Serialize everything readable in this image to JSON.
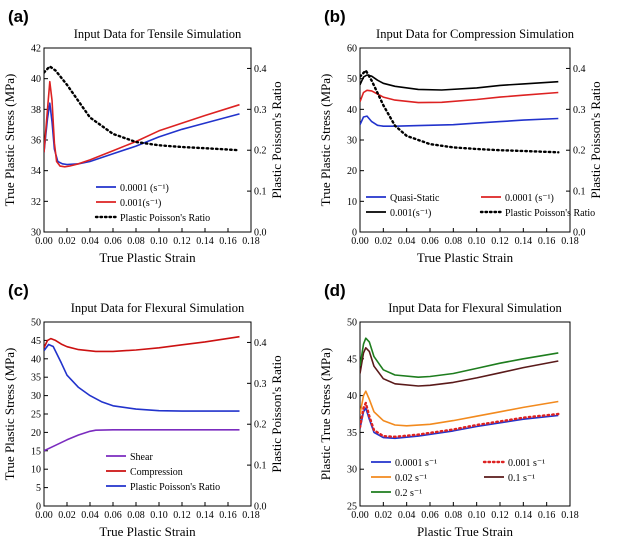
{
  "chart_data": [
    {
      "type": "line",
      "panel": "(a)",
      "title": "Input Data for Tensile Simulation",
      "xlabel": "True Plastic Strain",
      "ylabel": "True Plastic Stress (MPa)",
      "y2label": "Plastic Poisson's Ratio",
      "xlim": [
        0,
        0.18
      ],
      "ylim": [
        30,
        42
      ],
      "y2lim": [
        0,
        0.45
      ],
      "xticks": [
        "0.00",
        "0.02",
        "0.04",
        "0.06",
        "0.08",
        "0.10",
        "0.12",
        "0.14",
        "0.16",
        "0.18"
      ],
      "yticks": [
        "30",
        "32",
        "34",
        "36",
        "38",
        "40",
        "42"
      ],
      "y2ticks": [
        "0.0",
        "0.1",
        "0.2",
        "0.3",
        "0.4"
      ],
      "legend_position": "bottom-left",
      "series": [
        {
          "name": "0.0001 (s⁻¹)",
          "color": "#2233cc",
          "style": "solid",
          "axis": "left",
          "x": [
            0.0,
            0.003,
            0.005,
            0.007,
            0.009,
            0.012,
            0.016,
            0.02,
            0.03,
            0.04,
            0.06,
            0.08,
            0.1,
            0.12,
            0.14,
            0.17
          ],
          "y": [
            35.2,
            37.4,
            38.4,
            37.2,
            35.4,
            34.6,
            34.45,
            34.4,
            34.45,
            34.6,
            35.1,
            35.6,
            36.2,
            36.7,
            37.1,
            37.7
          ]
        },
        {
          "name": "0.001(s⁻¹)",
          "color": "#dd2222",
          "style": "solid",
          "axis": "left",
          "x": [
            0.0,
            0.003,
            0.005,
            0.007,
            0.009,
            0.011,
            0.014,
            0.018,
            0.022,
            0.03,
            0.04,
            0.06,
            0.08,
            0.1,
            0.12,
            0.14,
            0.17
          ],
          "y": [
            35.2,
            38.0,
            39.8,
            38.6,
            35.8,
            34.6,
            34.3,
            34.25,
            34.3,
            34.45,
            34.7,
            35.3,
            35.9,
            36.6,
            37.1,
            37.6,
            38.3
          ]
        },
        {
          "name": "Plastic Poisson's Ratio",
          "color": "#000000",
          "style": "dotted",
          "axis": "right",
          "x": [
            0.0,
            0.005,
            0.01,
            0.02,
            0.03,
            0.04,
            0.06,
            0.08,
            0.1,
            0.12,
            0.14,
            0.17
          ],
          "y": [
            0.39,
            0.405,
            0.395,
            0.36,
            0.32,
            0.28,
            0.24,
            0.22,
            0.212,
            0.208,
            0.205,
            0.2
          ]
        }
      ]
    },
    {
      "type": "line",
      "panel": "(b)",
      "title": "Input Data for Compression Simulation",
      "xlabel": "True Plastic  Strain",
      "ylabel": "True Plastic Stress (MPa)",
      "y2label": "Plastic Poisson's Ratio",
      "xlim": [
        0,
        0.18
      ],
      "ylim": [
        0,
        60
      ],
      "y2lim": [
        0,
        0.45
      ],
      "xticks": [
        "0.00",
        "0.02",
        "0.04",
        "0.06",
        "0.08",
        "0.10",
        "0.12",
        "0.14",
        "0.16",
        "0.18"
      ],
      "yticks": [
        "0",
        "10",
        "20",
        "30",
        "40",
        "50",
        "60"
      ],
      "y2ticks": [
        "0.0",
        "0.1",
        "0.2",
        "0.3",
        "0.4"
      ],
      "legend_position": "bottom",
      "series": [
        {
          "name": "Quasi-Static",
          "color": "#2233cc",
          "style": "solid",
          "axis": "left",
          "x": [
            0.0,
            0.003,
            0.006,
            0.01,
            0.015,
            0.02,
            0.03,
            0.05,
            0.08,
            0.1,
            0.12,
            0.14,
            0.17
          ],
          "y": [
            35.0,
            37.5,
            37.8,
            36.0,
            34.8,
            34.5,
            34.5,
            34.7,
            35.0,
            35.5,
            36.0,
            36.5,
            37.0
          ]
        },
        {
          "name": "0.0001 (s⁻¹)",
          "color": "#dd2222",
          "style": "solid",
          "axis": "left",
          "x": [
            0.0,
            0.003,
            0.006,
            0.01,
            0.015,
            0.02,
            0.03,
            0.05,
            0.07,
            0.1,
            0.12,
            0.14,
            0.17
          ],
          "y": [
            42.5,
            45.5,
            46.2,
            46.0,
            45.0,
            44.0,
            43.0,
            42.2,
            42.3,
            43.2,
            44.0,
            44.6,
            45.5
          ]
        },
        {
          "name": "0.001(s⁻¹)",
          "color": "#000000",
          "style": "solid",
          "axis": "left",
          "x": [
            0.0,
            0.003,
            0.006,
            0.01,
            0.015,
            0.02,
            0.03,
            0.05,
            0.07,
            0.1,
            0.12,
            0.14,
            0.17
          ],
          "y": [
            48.0,
            50.5,
            51.2,
            50.8,
            49.5,
            48.5,
            47.5,
            46.5,
            46.3,
            47.0,
            47.8,
            48.3,
            49.0
          ]
        },
        {
          "name": "Plastic Poisson's Ratio",
          "color": "#000000",
          "style": "dotted",
          "axis": "right",
          "x": [
            0.0,
            0.005,
            0.01,
            0.02,
            0.03,
            0.04,
            0.06,
            0.08,
            0.1,
            0.12,
            0.14,
            0.17
          ],
          "y": [
            0.38,
            0.395,
            0.37,
            0.31,
            0.26,
            0.235,
            0.215,
            0.207,
            0.203,
            0.2,
            0.198,
            0.195
          ]
        }
      ]
    },
    {
      "type": "line",
      "panel": "(c)",
      "title": "Input Data for Flexural Simulation",
      "xlabel": "True Plastic Strain",
      "ylabel": "True Plastic Stress (MPa)",
      "y2label": "Plastic Poisson's Ratio",
      "xlim": [
        0,
        0.18
      ],
      "ylim": [
        0,
        50
      ],
      "y2lim": [
        0,
        0.45
      ],
      "xticks": [
        "0.00",
        "0.02",
        "0.04",
        "0.06",
        "0.08",
        "0.10",
        "0.12",
        "0.14",
        "0.16",
        "0.18"
      ],
      "yticks": [
        "0",
        "5",
        "10",
        "15",
        "20",
        "25",
        "30",
        "35",
        "40",
        "45",
        "50"
      ],
      "y2ticks": [
        "0.0",
        "0.1",
        "0.2",
        "0.3",
        "0.4"
      ],
      "legend_position": "bottom",
      "series": [
        {
          "name": "Shear",
          "color": "#7b2cbf",
          "style": "solid",
          "axis": "left",
          "x": [
            0.0,
            0.01,
            0.02,
            0.03,
            0.04,
            0.045,
            0.06,
            0.1,
            0.17
          ],
          "y": [
            15.0,
            16.5,
            18.0,
            19.3,
            20.3,
            20.6,
            20.7,
            20.7,
            20.7
          ]
        },
        {
          "name": "Compression",
          "color": "#cc1111",
          "style": "solid",
          "axis": "left",
          "x": [
            0.0,
            0.003,
            0.006,
            0.01,
            0.015,
            0.02,
            0.03,
            0.045,
            0.06,
            0.08,
            0.1,
            0.12,
            0.14,
            0.17
          ],
          "y": [
            43.0,
            45.0,
            45.5,
            45.0,
            44.0,
            43.3,
            42.5,
            42.0,
            42.0,
            42.4,
            43.0,
            43.8,
            44.6,
            46.0
          ]
        },
        {
          "name": "Plastic Poisson's Ratio",
          "color": "#2233cc",
          "style": "solid",
          "axis": "right",
          "x": [
            0.0,
            0.004,
            0.008,
            0.015,
            0.02,
            0.03,
            0.04,
            0.05,
            0.06,
            0.08,
            0.1,
            0.12,
            0.14,
            0.17
          ],
          "y": [
            0.38,
            0.395,
            0.39,
            0.35,
            0.32,
            0.29,
            0.27,
            0.255,
            0.245,
            0.237,
            0.233,
            0.232,
            0.232,
            0.232
          ]
        }
      ]
    },
    {
      "type": "line",
      "panel": "(d)",
      "title": "Input Data for Flexural Simulation",
      "xlabel": "Plastic True Strain",
      "ylabel": "Plastic True Stress (MPa)",
      "xlim": [
        0,
        0.18
      ],
      "ylim": [
        25,
        50
      ],
      "xticks": [
        "0.00",
        "0.02",
        "0.04",
        "0.06",
        "0.08",
        "0.10",
        "0.12",
        "0.14",
        "0.16",
        "0.18"
      ],
      "yticks": [
        "25",
        "30",
        "35",
        "40",
        "45",
        "50"
      ],
      "legend_position": "bottom",
      "series": [
        {
          "name": "0.0001 s⁻¹",
          "color": "#2233cc",
          "style": "solid",
          "x": [
            0.0,
            0.003,
            0.005,
            0.008,
            0.012,
            0.02,
            0.03,
            0.05,
            0.08,
            0.1,
            0.12,
            0.14,
            0.17
          ],
          "y": [
            35.5,
            37.8,
            38.3,
            36.8,
            35.0,
            34.3,
            34.2,
            34.5,
            35.2,
            35.8,
            36.3,
            36.8,
            37.3
          ]
        },
        {
          "name": "0.001 s⁻¹",
          "color": "#dd2222",
          "style": "dotted",
          "x": [
            0.0,
            0.003,
            0.005,
            0.008,
            0.012,
            0.02,
            0.03,
            0.05,
            0.08,
            0.1,
            0.12,
            0.14,
            0.17
          ],
          "y": [
            35.7,
            38.3,
            39.0,
            37.2,
            35.3,
            34.5,
            34.4,
            34.7,
            35.4,
            36.0,
            36.5,
            37.0,
            37.5
          ]
        },
        {
          "name": "0.02 s⁻¹",
          "color": "#f28a1e",
          "style": "solid",
          "x": [
            0.0,
            0.003,
            0.005,
            0.008,
            0.012,
            0.02,
            0.03,
            0.04,
            0.06,
            0.08,
            0.1,
            0.12,
            0.14,
            0.17
          ],
          "y": [
            37.5,
            40.0,
            40.6,
            39.5,
            37.8,
            36.6,
            36.0,
            35.9,
            36.1,
            36.6,
            37.2,
            37.8,
            38.4,
            39.2
          ]
        },
        {
          "name": "0.1 s⁻¹",
          "color": "#5a1a1a",
          "style": "solid",
          "x": [
            0.0,
            0.003,
            0.005,
            0.008,
            0.012,
            0.02,
            0.03,
            0.05,
            0.06,
            0.08,
            0.1,
            0.12,
            0.14,
            0.17
          ],
          "y": [
            43.0,
            45.8,
            46.5,
            46.0,
            44.0,
            42.3,
            41.6,
            41.3,
            41.4,
            41.8,
            42.4,
            43.1,
            43.8,
            44.7
          ]
        },
        {
          "name": "0.2 s⁻¹",
          "color": "#1e7d1e",
          "style": "solid",
          "x": [
            0.0,
            0.003,
            0.005,
            0.008,
            0.012,
            0.02,
            0.03,
            0.05,
            0.06,
            0.08,
            0.1,
            0.12,
            0.14,
            0.17
          ],
          "y": [
            44.0,
            47.0,
            47.8,
            47.3,
            45.3,
            43.5,
            42.8,
            42.5,
            42.6,
            43.0,
            43.7,
            44.4,
            45.0,
            45.8
          ]
        }
      ]
    }
  ]
}
